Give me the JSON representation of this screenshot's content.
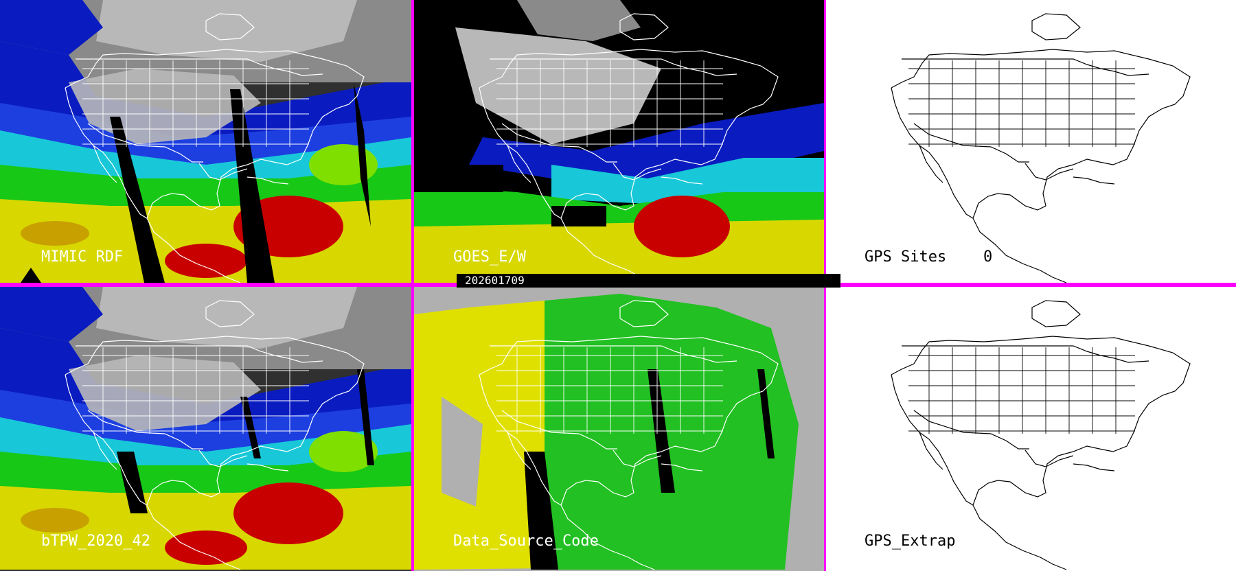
{
  "timestamp": "202601709",
  "panels": [
    {
      "id": "mimic",
      "label": "MIMIC RDF",
      "style": "tpw"
    },
    {
      "id": "goes",
      "label": "GOES_E/W",
      "style": "goes"
    },
    {
      "id": "gps_sites",
      "label": "GPS Sites",
      "count": "0",
      "style": "outline"
    },
    {
      "id": "btpw",
      "label": "bTPW_2020_42",
      "style": "tpw"
    },
    {
      "id": "dsc",
      "label": "Data_Source_Code",
      "style": "dsc"
    },
    {
      "id": "gps_extrap",
      "label": "GPS_Extrap",
      "style": "outline"
    }
  ],
  "colors": {
    "divider": "#ff00ff",
    "tpw_scale": [
      "#8a8a8a",
      "#b8b8b8",
      "#0a1cc0",
      "#1d3fe0",
      "#18c8d8",
      "#21d6a8",
      "#17c817",
      "#7fe000",
      "#d8d800",
      "#c8a000",
      "#c80000"
    ],
    "dsc_gray": "#b0b0b0",
    "dsc_yellow": "#e0e000",
    "dsc_green": "#22c022"
  }
}
